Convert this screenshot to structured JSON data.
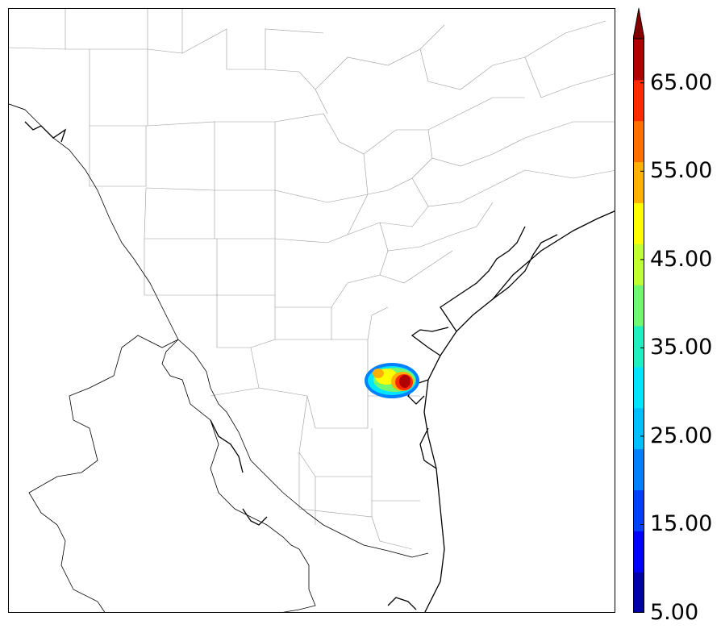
{
  "map": {
    "type": "filled-contour-on-county-map",
    "region": "South Texas coastal counties"
  },
  "colorbar": {
    "levels": [
      5,
      10,
      15,
      20,
      25,
      30,
      35,
      40,
      45,
      50,
      55,
      60,
      65,
      70
    ],
    "colors": [
      "#0000a8",
      "#0000ff",
      "#0040ff",
      "#0080ff",
      "#00bfff",
      "#00e5ff",
      "#20f0c0",
      "#70f870",
      "#c0ff30",
      "#ffff00",
      "#ffb000",
      "#ff7000",
      "#ff2a00",
      "#b00000"
    ],
    "extend_color": "#800000",
    "extend": "max",
    "tick_labels": [
      "5.00",
      "15.00",
      "25.00",
      "35.00",
      "45.00",
      "55.00",
      "65.00"
    ]
  },
  "chart_data": {
    "type": "heatmap",
    "colorbar_ticks": [
      5,
      15,
      25,
      35,
      45,
      55,
      65
    ],
    "colorbar_range": [
      5,
      70
    ],
    "max_value_region": "greater than 65 near Corpus Christi bay area"
  }
}
